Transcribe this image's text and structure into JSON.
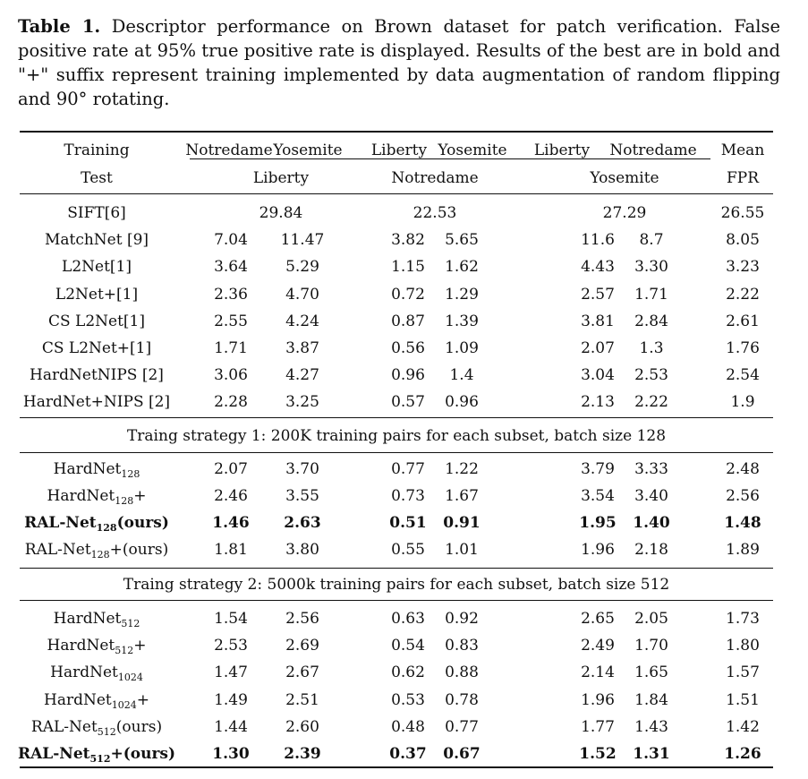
{
  "caption": {
    "label": "Table 1.",
    "text": " Descriptor performance on Brown dataset for patch verification. False positive rate at 95% true positive rate is displayed. Results of the best are in bold and \"+\" suffix represent training implemented by data augmentation of random flipping and 90° rotating."
  },
  "header": {
    "training_label": "Training",
    "test_label": "Test",
    "train_sets": [
      "Notredame",
      "Yosemite",
      "Liberty",
      "Yosemite",
      "Liberty",
      "Notredame"
    ],
    "test_sets": [
      "Liberty",
      "Notredame",
      "Yosemite"
    ],
    "mean_label": "Mean",
    "fpr_label": "FPR"
  },
  "baselines": [
    {
      "name": "SIFT[6]",
      "merged": [
        "29.84",
        "22.53",
        "27.29"
      ],
      "mean": "26.55"
    },
    {
      "name": "MatchNet [9]",
      "vals": [
        "7.04",
        "11.47",
        "3.82",
        "5.65",
        "11.6",
        "8.7"
      ],
      "mean": "8.05"
    },
    {
      "name": "L2Net[1]",
      "vals": [
        "3.64",
        "5.29",
        "1.15",
        "1.62",
        "4.43",
        "3.30"
      ],
      "mean": "3.23"
    },
    {
      "name": "L2Net+[1]",
      "vals": [
        "2.36",
        "4.70",
        "0.72",
        "1.29",
        "2.57",
        "1.71"
      ],
      "mean": "2.22"
    },
    {
      "name": "CS L2Net[1]",
      "vals": [
        "2.55",
        "4.24",
        "0.87",
        "1.39",
        "3.81",
        "2.84"
      ],
      "mean": "2.61"
    },
    {
      "name": "CS L2Net+[1]",
      "vals": [
        "1.71",
        "3.87",
        "0.56",
        "1.09",
        "2.07",
        "1.3"
      ],
      "mean": "1.76"
    },
    {
      "name": "HardNetNIPS [2]",
      "vals": [
        "3.06",
        "4.27",
        "0.96",
        "1.4",
        "3.04",
        "2.53"
      ],
      "mean": "2.54"
    },
    {
      "name": "HardNet+NIPS [2]",
      "vals": [
        "2.28",
        "3.25",
        "0.57",
        "0.96",
        "2.13",
        "2.22"
      ],
      "mean": "1.9"
    }
  ],
  "strategy1": {
    "title": "Traing strategy 1: 200K training pairs for each subset, batch size 128",
    "rows": [
      {
        "name": "HardNet",
        "sub": "128",
        "suffix": "",
        "vals": [
          "2.07",
          "3.70",
          "0.77",
          "1.22",
          "3.79",
          "3.33"
        ],
        "mean": "2.48",
        "bold": false
      },
      {
        "name": "HardNet",
        "sub": "128",
        "suffix": "+",
        "vals": [
          "2.46",
          "3.55",
          "0.73",
          "1.67",
          "3.54",
          "3.40"
        ],
        "mean": "2.56",
        "bold": false
      },
      {
        "name": "RAL-Net",
        "sub": "128",
        "suffix": "(ours)",
        "vals": [
          "1.46",
          "2.63",
          "0.51",
          "0.91",
          "1.95",
          "1.40"
        ],
        "mean": "1.48",
        "bold": true
      },
      {
        "name": "RAL-Net",
        "sub": "128",
        "suffix": "+(ours)",
        "vals": [
          "1.81",
          "3.80",
          "0.55",
          "1.01",
          "1.96",
          "2.18"
        ],
        "mean": "1.89",
        "bold": false
      }
    ]
  },
  "strategy2": {
    "title": "Traing strategy 2: 5000k training pairs for each subset, batch size 512",
    "rows": [
      {
        "name": "HardNet",
        "sub": "512",
        "suffix": "",
        "vals": [
          "1.54",
          "2.56",
          "0.63",
          "0.92",
          "2.65",
          "2.05"
        ],
        "mean": "1.73",
        "bold": false
      },
      {
        "name": "HardNet",
        "sub": "512",
        "suffix": "+",
        "vals": [
          "2.53",
          "2.69",
          "0.54",
          "0.83",
          "2.49",
          "1.70"
        ],
        "mean": "1.80",
        "bold": false
      },
      {
        "name": "HardNet",
        "sub": "1024",
        "suffix": "",
        "vals": [
          "1.47",
          "2.67",
          "0.62",
          "0.88",
          "2.14",
          "1.65"
        ],
        "mean": "1.57",
        "bold": false
      },
      {
        "name": "HardNet",
        "sub": "1024",
        "suffix": "+",
        "vals": [
          "1.49",
          "2.51",
          "0.53",
          "0.78",
          "1.96",
          "1.84"
        ],
        "mean": "1.51",
        "bold": false
      },
      {
        "name": "RAL-Net",
        "sub": "512",
        "suffix": "(ours)",
        "vals": [
          "1.44",
          "2.60",
          "0.48",
          "0.77",
          "1.77",
          "1.43"
        ],
        "mean": "1.42",
        "bold": false
      },
      {
        "name": "RAL-Net",
        "sub": "512",
        "suffix": "+(ours)",
        "vals": [
          "1.30",
          "2.39",
          "0.37",
          "0.67",
          "1.52",
          "1.31"
        ],
        "mean": "1.26",
        "bold": true
      }
    ]
  }
}
